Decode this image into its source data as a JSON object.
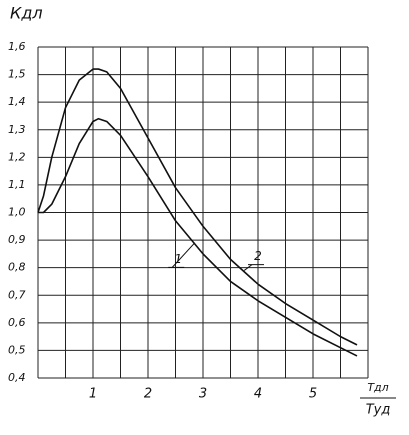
{
  "chart_data": {
    "type": "line",
    "y_label": "Кдл",
    "x_label": {
      "numerator": "Tдл",
      "denominator": "Tуд"
    },
    "x": [
      0,
      0.1,
      0.25,
      0.5,
      0.75,
      1,
      1.1,
      1.25,
      1.5,
      2,
      2.5,
      3,
      3.5,
      4,
      4.5,
      5,
      5.5,
      5.8
    ],
    "series": [
      {
        "name": "1",
        "color": "#111111",
        "values": [
          1.0,
          1.0,
          1.03,
          1.13,
          1.25,
          1.33,
          1.34,
          1.33,
          1.28,
          1.13,
          0.97,
          0.85,
          0.75,
          0.68,
          0.62,
          0.56,
          0.51,
          0.48
        ]
      },
      {
        "name": "2",
        "color": "#111111",
        "values": [
          1.0,
          1.06,
          1.2,
          1.38,
          1.48,
          1.52,
          1.52,
          1.51,
          1.45,
          1.27,
          1.09,
          0.95,
          0.83,
          0.74,
          0.67,
          0.61,
          0.55,
          0.52
        ]
      }
    ],
    "xlim": [
      0,
      6
    ],
    "ylim": [
      0.4,
      1.6
    ],
    "xticks": [
      1,
      2,
      3,
      4,
      5
    ],
    "xgrid": [
      0,
      0.5,
      1,
      1.5,
      2,
      2.5,
      3,
      3.5,
      4,
      4.5,
      5,
      5.5,
      6
    ],
    "yticks": [
      {
        "value": 0.4,
        "label": "0,4"
      },
      {
        "value": 0.5,
        "label": "0,5"
      },
      {
        "value": 0.6,
        "label": "0,6"
      },
      {
        "value": 0.7,
        "label": "0,7"
      },
      {
        "value": 0.8,
        "label": "0,8"
      },
      {
        "value": 0.9,
        "label": "0,9"
      },
      {
        "value": 1.0,
        "label": "1,0"
      },
      {
        "value": 1.1,
        "label": "1,1"
      },
      {
        "value": 1.2,
        "label": "1,2"
      },
      {
        "value": 1.3,
        "label": "1,3"
      },
      {
        "value": 1.4,
        "label": "1,4"
      },
      {
        "value": 1.5,
        "label": "1,5"
      },
      {
        "value": 1.6,
        "label": "1,6"
      }
    ],
    "grid": true
  }
}
